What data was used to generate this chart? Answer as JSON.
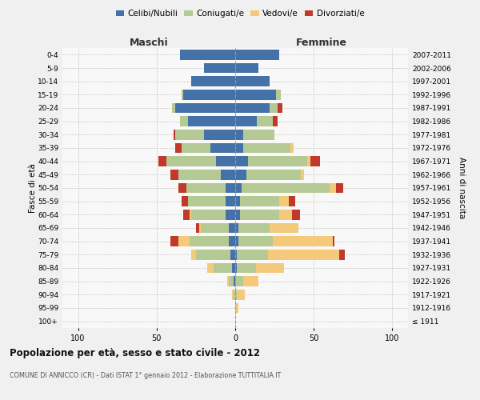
{
  "age_groups": [
    "0-4",
    "5-9",
    "10-14",
    "15-19",
    "20-24",
    "25-29",
    "30-34",
    "35-39",
    "40-44",
    "45-49",
    "50-54",
    "55-59",
    "60-64",
    "65-69",
    "70-74",
    "75-79",
    "80-84",
    "85-89",
    "90-94",
    "95-99",
    "100+"
  ],
  "birth_years": [
    "2007-2011",
    "2002-2006",
    "1997-2001",
    "1992-1996",
    "1987-1991",
    "1982-1986",
    "1977-1981",
    "1972-1976",
    "1967-1971",
    "1962-1966",
    "1957-1961",
    "1952-1956",
    "1947-1951",
    "1942-1946",
    "1937-1941",
    "1932-1936",
    "1927-1931",
    "1922-1926",
    "1917-1921",
    "1912-1916",
    "≤ 1911"
  ],
  "maschi": {
    "celibi": [
      35,
      20,
      28,
      33,
      38,
      30,
      20,
      16,
      12,
      9,
      6,
      6,
      6,
      4,
      4,
      3,
      2,
      1,
      0,
      0,
      0
    ],
    "coniugati": [
      0,
      0,
      0,
      1,
      2,
      5,
      18,
      18,
      32,
      27,
      25,
      24,
      22,
      18,
      25,
      22,
      12,
      3,
      1,
      0,
      0
    ],
    "vedovi": [
      0,
      0,
      0,
      0,
      0,
      0,
      0,
      0,
      0,
      0,
      0,
      0,
      1,
      1,
      7,
      3,
      4,
      1,
      1,
      0,
      0
    ],
    "divorziati": [
      0,
      0,
      0,
      0,
      0,
      0,
      1,
      4,
      5,
      5,
      5,
      4,
      4,
      2,
      5,
      0,
      0,
      0,
      0,
      0,
      0
    ]
  },
  "femmine": {
    "nubili": [
      28,
      15,
      22,
      26,
      22,
      14,
      5,
      5,
      8,
      7,
      4,
      3,
      3,
      2,
      2,
      1,
      1,
      0,
      0,
      0,
      0
    ],
    "coniugate": [
      0,
      0,
      0,
      3,
      5,
      10,
      20,
      30,
      38,
      35,
      56,
      25,
      25,
      20,
      22,
      20,
      12,
      5,
      1,
      0,
      0
    ],
    "vedove": [
      0,
      0,
      0,
      0,
      0,
      0,
      0,
      2,
      2,
      2,
      4,
      6,
      8,
      18,
      38,
      45,
      18,
      10,
      5,
      2,
      0
    ],
    "divorziate": [
      0,
      0,
      0,
      0,
      3,
      3,
      0,
      0,
      6,
      0,
      5,
      4,
      5,
      0,
      1,
      4,
      0,
      0,
      0,
      0,
      0
    ]
  },
  "colors": {
    "celibi": "#4472a8",
    "coniugati": "#b5c994",
    "vedovi": "#f5c97a",
    "divorziati": "#c0392b"
  },
  "xlim": 110,
  "title": "Popolazione per età, sesso e stato civile - 2012",
  "subtitle": "COMUNE DI ANNICCO (CR) - Dati ISTAT 1° gennaio 2012 - Elaborazione TUTTITALIA.IT",
  "xlabel_left": "Maschi",
  "xlabel_right": "Femmine",
  "ylabel_left": "Fasce di età",
  "ylabel_right": "Anni di nascita",
  "legend_labels": [
    "Celibi/Nubili",
    "Coniugati/e",
    "Vedovi/e",
    "Divorziati/e"
  ],
  "bg_color": "#f0f0f0",
  "plot_bg": "#f8f8f8"
}
